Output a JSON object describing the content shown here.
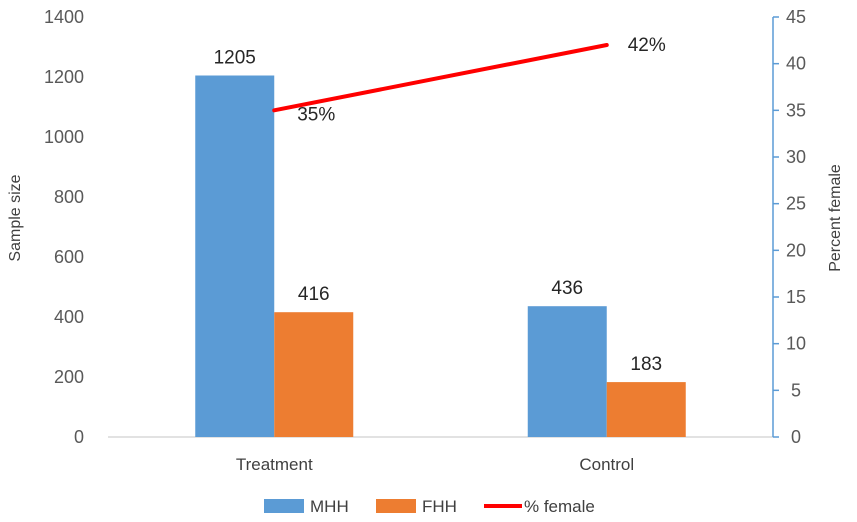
{
  "chart_data": {
    "type": "bar",
    "categories": [
      "Treatment",
      "Control"
    ],
    "series": [
      {
        "name": "MHH",
        "values": [
          1205,
          436
        ],
        "color": "#5B9BD5",
        "labels": [
          "1205",
          "436"
        ]
      },
      {
        "name": "FHH",
        "values": [
          416,
          183
        ],
        "color": "#ED7D31",
        "labels": [
          "416",
          "183"
        ]
      }
    ],
    "line_series": {
      "name": "% female",
      "values": [
        35,
        42
      ],
      "color": "#FF0000",
      "labels": [
        "35%",
        "42%"
      ]
    },
    "ylabel": "Sample size",
    "y2label": "Percent female",
    "ylim": [
      0,
      1400
    ],
    "yticks": [
      "0",
      "200",
      "400",
      "600",
      "800",
      "1000",
      "1200",
      "1400"
    ],
    "y2lim": [
      0,
      45
    ],
    "y2ticks": [
      "0",
      "5",
      "10",
      "15",
      "20",
      "25",
      "30",
      "35",
      "40",
      "45"
    ],
    "secondary_axis_color": "#5B9BD5",
    "grid": false,
    "legend_position": "bottom"
  }
}
